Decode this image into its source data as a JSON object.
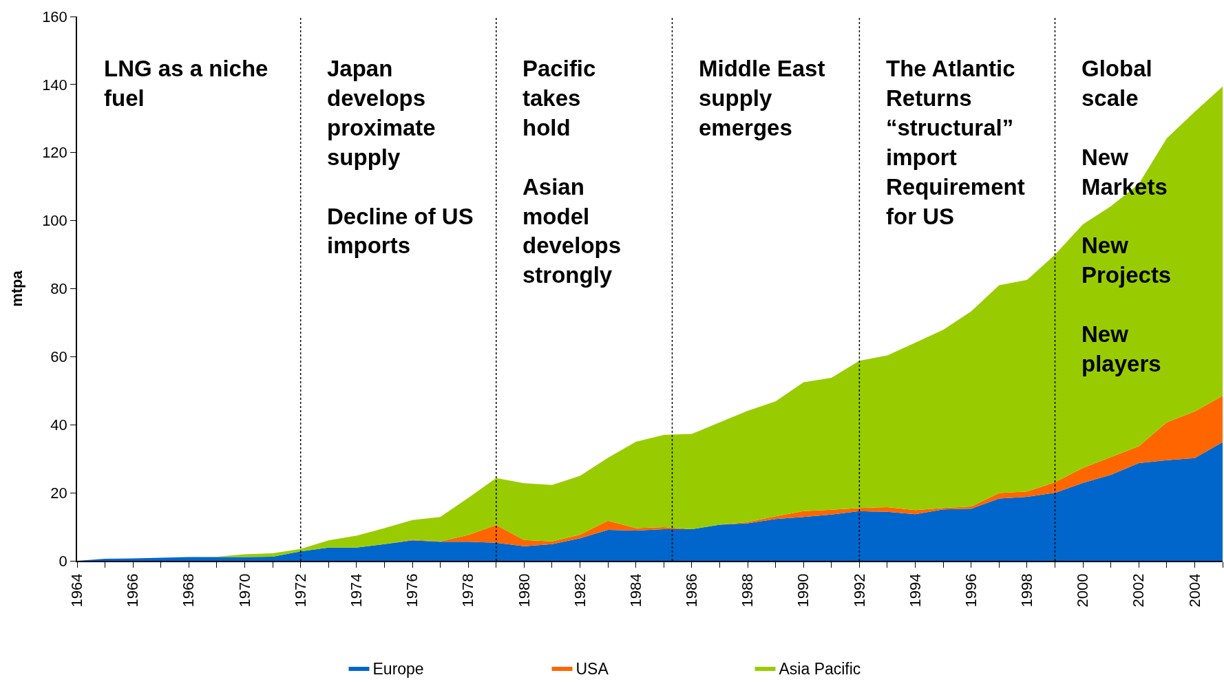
{
  "chart_data": {
    "type": "area",
    "stacked": true,
    "ylabel": "mtpa",
    "x": [
      1964,
      1965,
      1966,
      1967,
      1968,
      1969,
      1970,
      1971,
      1972,
      1973,
      1974,
      1975,
      1976,
      1977,
      1978,
      1979,
      1980,
      1981,
      1982,
      1983,
      1984,
      1985,
      1986,
      1987,
      1988,
      1989,
      1990,
      1991,
      1992,
      1993,
      1994,
      1995,
      1996,
      1997,
      1998,
      1999,
      2000,
      2001,
      2002,
      2003,
      2004,
      2005
    ],
    "series": [
      {
        "name": "Europe",
        "color": "#0066cc",
        "values": [
          0,
          0.6,
          0.7,
          0.9,
          1.1,
          1.1,
          1.1,
          1.2,
          2.8,
          3.9,
          3.9,
          4.9,
          6.0,
          5.6,
          5.6,
          5.3,
          4.3,
          4.9,
          6.6,
          9.1,
          8.9,
          9.3,
          9.3,
          10.6,
          11.0,
          12.3,
          12.9,
          13.6,
          14.6,
          14.4,
          13.7,
          15.1,
          15.3,
          18.3,
          18.8,
          20.0,
          22.9,
          25.3,
          28.7,
          29.6,
          30.2,
          34.9
        ]
      },
      {
        "name": "USA",
        "color": "#ff6600",
        "values": [
          0,
          0,
          0,
          0,
          0,
          0,
          0,
          0,
          0,
          0,
          0,
          0,
          0.2,
          0.1,
          2.0,
          5.2,
          1.8,
          0.8,
          1.1,
          2.7,
          0.7,
          0.6,
          0,
          0,
          0.4,
          0.8,
          1.7,
          1.4,
          0.9,
          1.4,
          1.2,
          0.4,
          0.7,
          1.6,
          1.6,
          3.1,
          4.4,
          5.2,
          5.0,
          11.1,
          13.7,
          13.6
        ]
      },
      {
        "name": "Asia Pacific",
        "color": "#99cc00",
        "values": [
          0,
          0,
          0,
          0,
          0,
          0.1,
          0.8,
          1.0,
          0.7,
          2.1,
          3.5,
          4.7,
          5.8,
          7.2,
          10.9,
          13.8,
          16.7,
          16.6,
          17.3,
          18.5,
          25.4,
          27.1,
          28.0,
          30.1,
          32.7,
          33.8,
          37.9,
          38.8,
          43.3,
          44.6,
          49.2,
          52.4,
          57.3,
          61.1,
          62.2,
          66.9,
          71.6,
          73.7,
          77.1,
          83.5,
          88.1,
          90.9
        ]
      }
    ],
    "xlim": [
      1964,
      2005
    ],
    "xticks": [
      1964,
      1966,
      1968,
      1970,
      1972,
      1974,
      1976,
      1978,
      1980,
      1982,
      1984,
      1986,
      1988,
      1990,
      1992,
      1994,
      1996,
      1998,
      2000,
      2002,
      2004
    ],
    "ylim": [
      0,
      160
    ],
    "yticks": [
      0,
      20,
      40,
      60,
      80,
      100,
      120,
      140,
      160
    ],
    "grid": false,
    "legend": "bottom",
    "ref_lines": [
      {
        "axis": "x",
        "value": 1972,
        "line_style": "dotted",
        "color": "#000000"
      },
      {
        "axis": "x",
        "value": 1979,
        "line_style": "dotted",
        "color": "#000000"
      },
      {
        "axis": "x",
        "value": 1985.3,
        "line_style": "dotted",
        "color": "#000000"
      },
      {
        "axis": "x",
        "value": 1992,
        "line_style": "dotted",
        "color": "#000000"
      },
      {
        "axis": "x",
        "value": 1999,
        "line_style": "dotted",
        "color": "#000000"
      }
    ],
    "annotations": [
      "LNG as a niche\nfuel",
      "Japan\ndevelops\nproximate\nsupply\n\nDecline of US\nimports",
      "Pacific\ntakes\nhold\n\nAsian\nmodel\ndevelops\nstrongly",
      "Middle East\nsupply\nemerges",
      "The Atlantic\nReturns\n“structural”\nimport\nRequirement\nfor US",
      "Global\nscale\n\nNew\nMarkets\n\nNew\nProjects\n\nNew\nplayers"
    ]
  }
}
